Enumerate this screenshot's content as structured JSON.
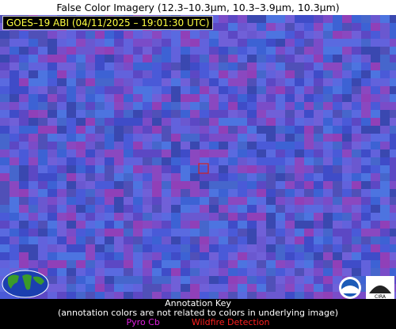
{
  "header": {
    "title": "False Color Imagery (12.3–10.3µm, 10.3–3.9µm, 10.3µm)",
    "timestamp": "GOES–19 ABI (04/11/2025 – 19:01:30 UTC)"
  },
  "annotation_key": {
    "heading": "Annotation Key",
    "note": "(annotation colors are not related to colors in underlying image)",
    "items": [
      "Pyro Cb",
      "Wildfire Detection"
    ]
  }
}
